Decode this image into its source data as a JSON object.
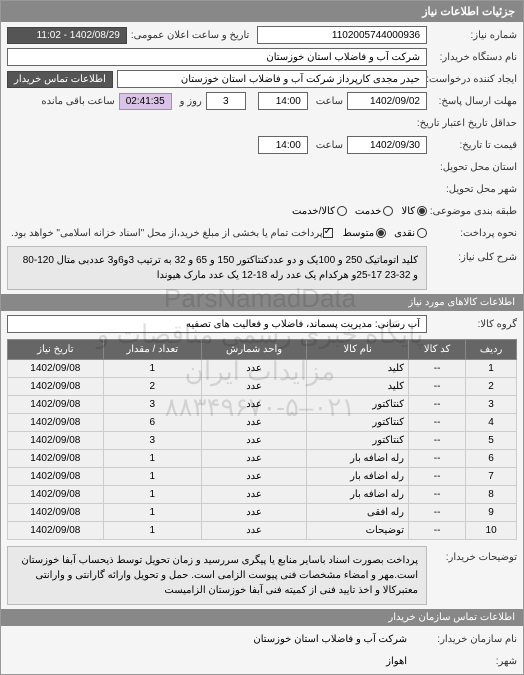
{
  "panel_title": "جزئیات اطلاعات نیاز",
  "fields": {
    "request_no_label": "شماره نیاز:",
    "request_no": "1102005744000936",
    "announce_label": "تاریخ و ساعت اعلان عمومی:",
    "announce_value": "1402/08/29 - 11:02",
    "buyer_org_label": "نام دستگاه خریدار:",
    "buyer_org": "شرکت آب و فاضلاب استان خوزستان",
    "requester_label": "ایجاد کننده درخواست:",
    "requester": "حیدر مجدی کارپرداز شرکت آب و فاضلاب استان خوزستان",
    "contact_label": "اطلاعات تماس خریدار",
    "deadline_send_label": "مهلت ارسال پاسخ:",
    "deadline_date": "1402/09/02",
    "deadline_time_label": "ساعت",
    "deadline_time": "14:00",
    "days_left": "3",
    "days_word": "روز و",
    "time_left": "02:41:35",
    "remain_label": "ساعت باقی مانده",
    "valid_label": "حداقل تاریخ اعتبار تاریخ:",
    "price_label": "قیمت تا تاریخ:",
    "price_date": "1402/09/30",
    "price_time": "14:00",
    "delivery_place_label": "استان محل تحویل:",
    "delivery_city_label": "شهر محل تحویل:",
    "budget_label": "طبقه بندی موضوعی:",
    "budget_opts": {
      "a": "کالا",
      "b": "خدمت",
      "c": "کالا/خدمت"
    },
    "pay_label": "نحوه پرداخت:",
    "pay_opts": {
      "a": "نقدی",
      "b": "متوسط"
    },
    "pay_note": "پرداخت تمام یا بخشی از مبلغ خرید،از محل \"اسناد خزانه اسلامی\" خواهد بود."
  },
  "desc": {
    "title_label": "شرح کلی نیاز:",
    "text": "کلید اتوماتیک 250 و 100یک و دو عددکنتاکتور 150 و 65 و 32 به ترتیب 3و6و3 عددبی متال 120-80 و 32-23 17-25و هرکدام یک عدد رله 18-12 یک عدد مارک هیوندا"
  },
  "items_header": "اطلاعات کالاهای مورد نیاز",
  "group": {
    "label": "گروه کالا:",
    "value": "آب رسانی: مدیریت پسماند، فاضلاب و فعالیت های تصفیه"
  },
  "table": {
    "cols": [
      "ردیف",
      "کد کالا",
      "نام کالا",
      "واحد شمارش",
      "تعداد / مقدار",
      "تاریخ نیاز"
    ],
    "rows": [
      [
        "1",
        "--",
        "کلید",
        "عدد",
        "1",
        "1402/09/08"
      ],
      [
        "2",
        "--",
        "کلید",
        "عدد",
        "2",
        "1402/09/08"
      ],
      [
        "3",
        "--",
        "کنتاکتور",
        "عدد",
        "3",
        "1402/09/08"
      ],
      [
        "4",
        "--",
        "کنتاکتور",
        "عدد",
        "6",
        "1402/09/08"
      ],
      [
        "5",
        "--",
        "کنتاکتور",
        "عدد",
        "3",
        "1402/09/08"
      ],
      [
        "6",
        "--",
        "رله اضافه بار",
        "عدد",
        "1",
        "1402/09/08"
      ],
      [
        "7",
        "--",
        "رله اضافه بار",
        "عدد",
        "1",
        "1402/09/08"
      ],
      [
        "8",
        "--",
        "رله اضافه بار",
        "عدد",
        "1",
        "1402/09/08"
      ],
      [
        "9",
        "--",
        "رله افقی",
        "عدد",
        "1",
        "1402/09/08"
      ],
      [
        "10",
        "--",
        "توضیحات",
        "عدد",
        "1",
        "1402/09/08"
      ]
    ]
  },
  "buyer_note": {
    "label": "توضیحات خریدار:",
    "text": "پرداخت بصورت اسناد باسایر منابع یا پیگری سررسید و زمان تحویل توسط ذیحساب آبفا خوزستان است.مهر و امضاء مشخصات فنی پیوست الزامی است. حمل و تحویل وارائه گارانتی و وارانتی معتبرکالا و اخذ تایید فنی از کمیته فنی آبفا خوزستان الزامیست"
  },
  "contact_section": {
    "header": "اطلاعات تماس سازمان خریدار",
    "org_label": "نام سازمان خریدار:",
    "org": "شرکت آب و فاضلاب استان خوزستان",
    "city_label": "شهر:",
    "city": "اهواز"
  },
  "watermark": "ParsNamadData\nپایگاه خبری رسمی مناقصات و مزایدات ایران\n۰۲۱–۸۸۳۴۹۶۷۰-۵"
}
